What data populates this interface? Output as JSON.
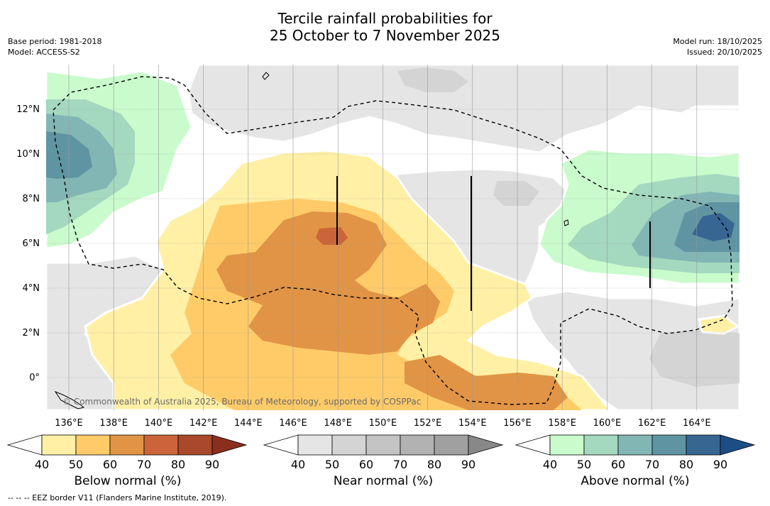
{
  "title": {
    "line1": "Tercile rainfall probabilities for",
    "line2": "25 October to 7 November 2025"
  },
  "meta": {
    "base_period": "Base period: 1981-2018",
    "model": "Model: ACCESS-S2",
    "model_run": "Model run: 18/10/2025",
    "issued": "Issued: 20/10/2025"
  },
  "map": {
    "lon_labels": [
      "136°E",
      "138°E",
      "140°E",
      "142°E",
      "144°E",
      "146°E",
      "148°E",
      "150°E",
      "152°E",
      "154°E",
      "156°E",
      "158°E",
      "160°E",
      "162°E",
      "164°E"
    ],
    "lat_labels": [
      "12°N",
      "10°N",
      "8°N",
      "6°N",
      "4°N",
      "2°N",
      "0°"
    ],
    "copyright": "© Commonwealth of Australia 2025, Bureau of Meteorology, supported by COSPPac",
    "colors": {
      "below": [
        "#fff0a5",
        "#fecb68",
        "#e19445",
        "#cb643a",
        "#a9482a",
        "#8a2e1e"
      ],
      "near": [
        "#e5e5e5",
        "#d4d4d4",
        "#c4c4c4",
        "#b2b2b2",
        "#a0a0a0",
        "#888888"
      ],
      "above": [
        "#c9fbcc",
        "#a4d8bf",
        "#82b6b4",
        "#5f94a2",
        "#376693",
        "#1c4e86"
      ]
    }
  },
  "colorbars": [
    {
      "name": "below",
      "label": "Below normal (%)",
      "ticks": [
        "40",
        "50",
        "60",
        "70",
        "80",
        "90"
      ]
    },
    {
      "name": "near",
      "label": "Near normal (%)",
      "ticks": [
        "40",
        "50",
        "60",
        "70",
        "80",
        "90"
      ]
    },
    {
      "name": "above",
      "label": "Above normal (%)",
      "ticks": [
        "40",
        "50",
        "60",
        "70",
        "80",
        "90"
      ]
    }
  ],
  "footnote": "--  --  -- EEZ border V11 (Flanders Marine Institute, 2019)."
}
